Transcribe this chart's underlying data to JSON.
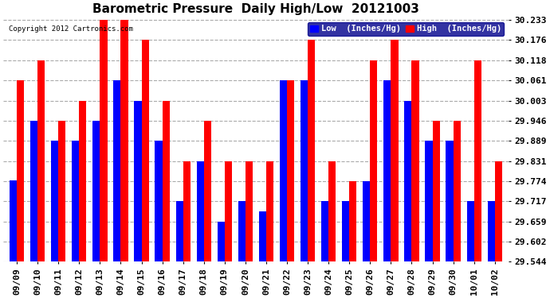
{
  "title": "Barometric Pressure  Daily High/Low  20121003",
  "copyright": "Copyright 2012 Cartronics.com",
  "legend_low": "Low  (Inches/Hg)",
  "legend_high": "High  (Inches/Hg)",
  "dates": [
    "09/09",
    "09/10",
    "09/11",
    "09/12",
    "09/13",
    "09/14",
    "09/15",
    "09/16",
    "09/17",
    "09/18",
    "09/19",
    "09/20",
    "09/21",
    "09/22",
    "09/23",
    "09/24",
    "09/25",
    "09/26",
    "09/27",
    "09/28",
    "09/29",
    "09/30",
    "10/01",
    "10/02"
  ],
  "low_values": [
    29.775,
    29.946,
    29.889,
    29.889,
    29.946,
    30.061,
    30.003,
    29.889,
    29.717,
    29.831,
    29.659,
    29.717,
    29.688,
    30.061,
    30.061,
    29.717,
    29.717,
    29.774,
    30.061,
    30.003,
    29.889,
    29.889,
    29.717,
    29.717
  ],
  "high_values": [
    30.061,
    30.118,
    29.946,
    30.003,
    30.233,
    30.233,
    30.176,
    30.003,
    29.831,
    29.946,
    29.831,
    29.831,
    29.831,
    30.061,
    30.176,
    29.831,
    29.774,
    30.118,
    30.176,
    30.118,
    29.946,
    29.946,
    30.118,
    29.831
  ],
  "low_color": "#0000ff",
  "high_color": "#ff0000",
  "bg_color": "#ffffff",
  "grid_color": "#aaaaaa",
  "yticks": [
    29.544,
    29.602,
    29.659,
    29.717,
    29.774,
    29.831,
    29.889,
    29.946,
    30.003,
    30.061,
    30.118,
    30.176,
    30.233
  ],
  "ymin": 29.544,
  "ymax": 30.233,
  "title_fontsize": 11,
  "tick_fontsize": 8,
  "legend_fontsize": 7.5,
  "bar_width": 0.35
}
